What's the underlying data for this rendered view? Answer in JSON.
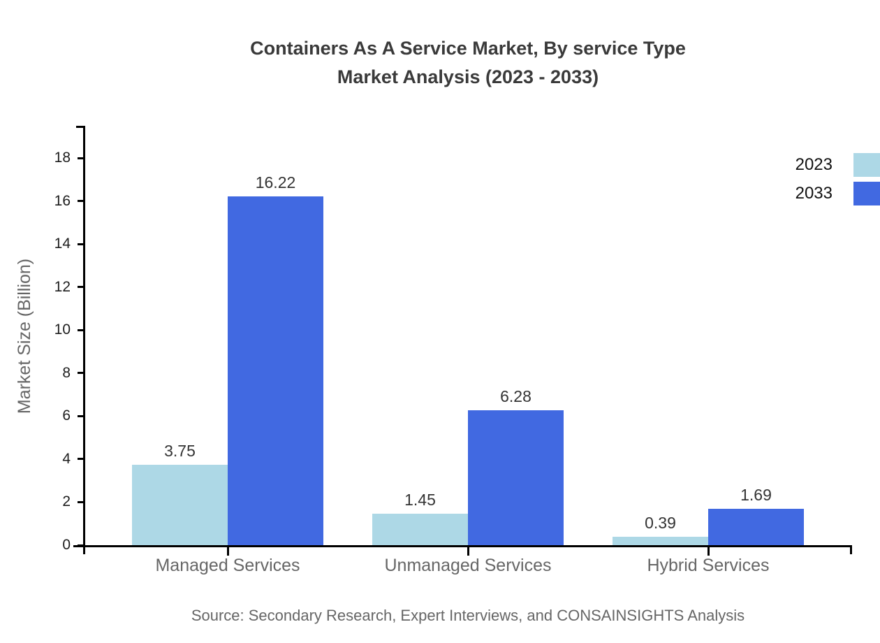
{
  "title": {
    "line1": "Containers As A Service Market, By service Type",
    "line2": "Market Analysis (2023 - 2033)"
  },
  "source": "Source: Secondary Research, Expert Interviews, and CONSAINSIGHTS Analysis",
  "chart_data": {
    "type": "bar",
    "title": "Containers As A Service Market, By service Type Market Analysis (2023 - 2033)",
    "categories": [
      "Managed Services",
      "Unmanaged Services",
      "Hybrid Services"
    ],
    "series": [
      {
        "name": "2023",
        "color": "#add8e6",
        "values": [
          3.75,
          1.45,
          0.39
        ]
      },
      {
        "name": "2033",
        "color": "#4169e1",
        "values": [
          16.22,
          6.28,
          1.69
        ]
      }
    ],
    "xlabel": "",
    "ylabel": "Market Size (Billion)",
    "ylim": [
      0,
      18
    ],
    "ytick_step": 2,
    "grid": false,
    "legend_position": "top-right",
    "value_label_decimals": 2,
    "axis_color": "#000000",
    "text_colors": {
      "title": "#3a3a3a",
      "tick_labels": "#1d1d1d",
      "category_labels": "#666666",
      "value_labels": "#333333",
      "source": "#666666"
    }
  }
}
